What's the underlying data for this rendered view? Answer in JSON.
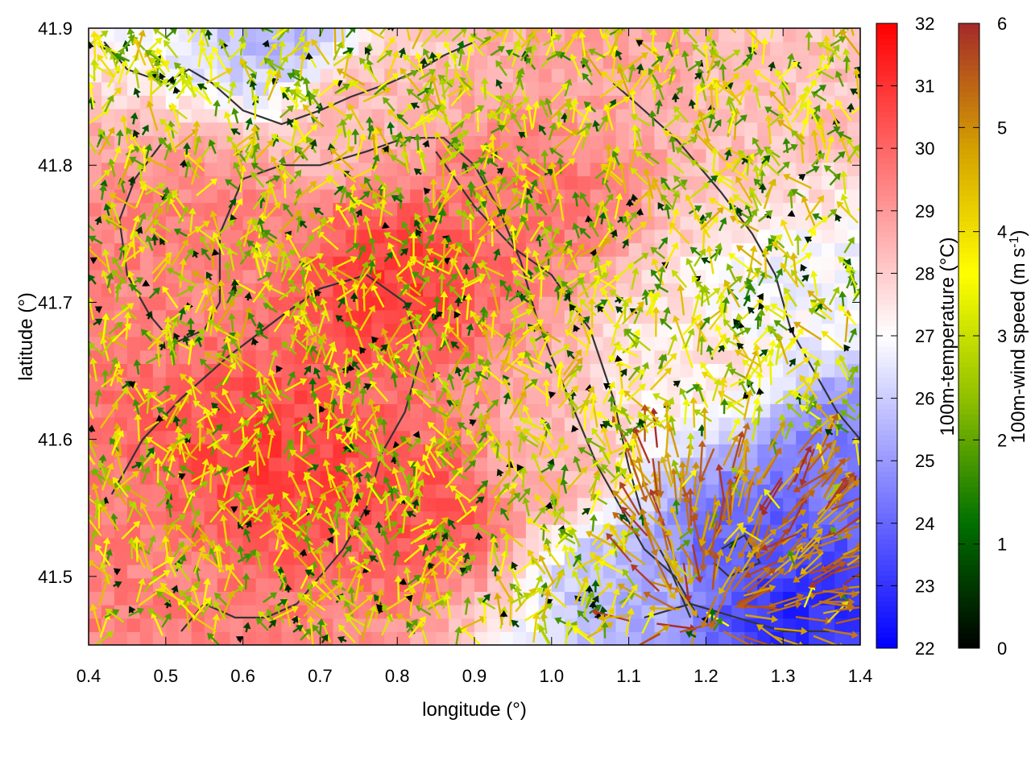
{
  "chart_data": {
    "type": "heatmap",
    "title": "",
    "xlabel": "longitude (°)",
    "ylabel": "latitude (°)",
    "xlim": [
      0.4,
      1.4
    ],
    "ylim": [
      41.45,
      41.9
    ],
    "xticks": [
      "0.4",
      "0.5",
      "0.6",
      "0.7",
      "0.8",
      "0.9",
      "1.0",
      "1.1",
      "1.2",
      "1.3",
      "1.4"
    ],
    "yticks": [
      "41.5",
      "41.6",
      "41.7",
      "41.8",
      "41.9"
    ],
    "grid": false,
    "temperature_colorbar": {
      "label": "100m-temperature (°C)",
      "range": [
        22,
        32
      ],
      "ticks": [
        "22",
        "23",
        "24",
        "25",
        "26",
        "27",
        "28",
        "29",
        "30",
        "31",
        "32"
      ],
      "colors": [
        "#0000ff",
        "#ffffff",
        "#ff0000"
      ]
    },
    "wind_colorbar": {
      "label_main": "100m-wind speed (m s",
      "label_sup": "-1",
      "label_close": ")",
      "range": [
        0,
        6
      ],
      "ticks": [
        "0",
        "1",
        "2",
        "3",
        "4",
        "5",
        "6"
      ],
      "colors": [
        "#000000",
        "#007000",
        "#90c000",
        "#ffff00",
        "#d4a000",
        "#a52a2a"
      ]
    },
    "temperature_field": [
      {
        "lon": 0.55,
        "lat": 41.75,
        "temp": 29.5
      },
      {
        "lon": 0.65,
        "lat": 41.58,
        "temp": 30.8
      },
      {
        "lon": 0.8,
        "lat": 41.72,
        "temp": 30.9
      },
      {
        "lon": 0.85,
        "lat": 41.55,
        "temp": 30.5
      },
      {
        "lon": 0.97,
        "lat": 41.78,
        "temp": 29.8
      },
      {
        "lon": 0.45,
        "lat": 41.5,
        "temp": 29.5
      },
      {
        "lon": 0.75,
        "lat": 41.85,
        "temp": 28.5
      },
      {
        "lon": 0.66,
        "lat": 41.89,
        "temp": 25.5
      },
      {
        "lon": 1.08,
        "lat": 41.87,
        "temp": 28.8
      },
      {
        "lon": 1.3,
        "lat": 41.85,
        "temp": 28.2
      },
      {
        "lon": 1.32,
        "lat": 41.7,
        "temp": 26.8
      },
      {
        "lon": 1.2,
        "lat": 41.66,
        "temp": 27.5
      },
      {
        "lon": 1.25,
        "lat": 41.53,
        "temp": 23.8
      },
      {
        "lon": 1.32,
        "lat": 41.48,
        "temp": 22.8
      },
      {
        "lon": 1.1,
        "lat": 41.5,
        "temp": 25.5
      },
      {
        "lon": 1.38,
        "lat": 41.6,
        "temp": 24.5
      },
      {
        "lon": 1.0,
        "lat": 41.58,
        "temp": 28.5
      }
    ],
    "wind_regions": [
      {
        "lon": [
          0.4,
          1.4
        ],
        "lat": [
          41.45,
          41.9
        ],
        "speed": [
          1.5,
          4.5
        ]
      },
      {
        "lon": [
          1.05,
          1.4
        ],
        "lat": [
          41.45,
          41.6
        ],
        "speed": [
          4.5,
          6.0
        ]
      }
    ],
    "contours": [
      [
        [
          0.42,
          41.89
        ],
        [
          0.45,
          41.87
        ],
        [
          0.5,
          41.86
        ],
        [
          0.53,
          41.87
        ],
        [
          0.56,
          41.86
        ],
        [
          0.6,
          41.84
        ],
        [
          0.65,
          41.83
        ],
        [
          0.7,
          41.84
        ],
        [
          0.74,
          41.85
        ],
        [
          0.79,
          41.86
        ],
        [
          0.83,
          41.87
        ],
        [
          0.86,
          41.88
        ],
        [
          0.9,
          41.89
        ]
      ],
      [
        [
          0.5,
          41.82
        ],
        [
          0.46,
          41.79
        ],
        [
          0.44,
          41.76
        ],
        [
          0.45,
          41.72
        ],
        [
          0.48,
          41.69
        ],
        [
          0.51,
          41.67
        ],
        [
          0.55,
          41.68
        ],
        [
          0.57,
          41.7
        ],
        [
          0.57,
          41.75
        ],
        [
          0.6,
          41.79
        ],
        [
          0.65,
          41.8
        ],
        [
          0.7,
          41.8
        ],
        [
          0.76,
          41.81
        ],
        [
          0.81,
          41.82
        ],
        [
          0.86,
          41.82
        ],
        [
          0.9,
          41.8
        ],
        [
          0.93,
          41.77
        ],
        [
          0.96,
          41.73
        ],
        [
          0.98,
          41.69
        ],
        [
          1.0,
          41.66
        ],
        [
          1.03,
          41.62
        ],
        [
          1.06,
          41.58
        ],
        [
          1.09,
          41.55
        ],
        [
          1.12,
          41.52
        ],
        [
          1.16,
          41.5
        ],
        [
          1.19,
          41.47
        ]
      ],
      [
        [
          0.43,
          41.56
        ],
        [
          0.47,
          41.6
        ],
        [
          0.52,
          41.63
        ],
        [
          0.58,
          41.66
        ],
        [
          0.65,
          41.69
        ],
        [
          0.7,
          41.71
        ],
        [
          0.76,
          41.72
        ],
        [
          0.81,
          41.7
        ],
        [
          0.83,
          41.66
        ],
        [
          0.81,
          41.62
        ],
        [
          0.78,
          41.59
        ],
        [
          0.76,
          41.55
        ],
        [
          0.73,
          41.52
        ],
        [
          0.7,
          41.5
        ],
        [
          0.67,
          41.48
        ],
        [
          0.63,
          41.47
        ],
        [
          0.59,
          41.47
        ],
        [
          0.55,
          41.48
        ],
        [
          0.52,
          41.46
        ]
      ],
      [
        [
          0.85,
          41.81
        ],
        [
          0.9,
          41.77
        ],
        [
          0.95,
          41.74
        ],
        [
          1.0,
          41.72
        ],
        [
          1.05,
          41.68
        ],
        [
          1.08,
          41.63
        ],
        [
          1.1,
          41.58
        ],
        [
          1.12,
          41.54
        ],
        [
          1.15,
          41.51
        ],
        [
          1.18,
          41.47
        ]
      ],
      [
        [
          1.22,
          41.52
        ],
        [
          1.25,
          41.53
        ],
        [
          1.27,
          41.51
        ],
        [
          1.23,
          41.5
        ],
        [
          1.21,
          41.51
        ]
      ],
      [
        [
          1.12,
          41.47
        ],
        [
          1.18,
          41.48
        ],
        [
          1.24,
          41.47
        ],
        [
          1.3,
          41.46
        ],
        [
          1.36,
          41.46
        ]
      ],
      [
        [
          1.08,
          41.86
        ],
        [
          1.12,
          41.84
        ],
        [
          1.16,
          41.82
        ],
        [
          1.19,
          41.8
        ],
        [
          1.22,
          41.78
        ],
        [
          1.26,
          41.75
        ],
        [
          1.29,
          41.72
        ],
        [
          1.31,
          41.68
        ],
        [
          1.34,
          41.65
        ],
        [
          1.37,
          41.62
        ],
        [
          1.4,
          41.6
        ]
      ]
    ]
  }
}
